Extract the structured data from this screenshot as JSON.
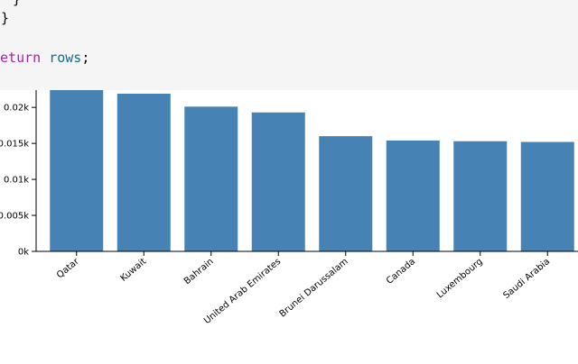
{
  "code": {
    "lines": [
      "}",
      "}"
    ],
    "keyword": "return",
    "identifier": "rows",
    "punct": ";"
  },
  "chart_data": {
    "type": "bar",
    "categories": [
      "Qatar",
      "Kuwait",
      "Bahrain",
      "United Arab Emirates",
      "Brunei Darussalam",
      "Canada",
      "Luxembourg",
      "Saudi Arabia"
    ],
    "values": [
      0.0224,
      0.0219,
      0.0201,
      0.0193,
      0.016,
      0.0154,
      0.0153,
      0.0152
    ],
    "color": "#4682b4",
    "ylim": [
      0,
      0.0224
    ],
    "yticks": [
      {
        "value": 0,
        "label": "0k"
      },
      {
        "value": 0.005,
        "label": "0.005k"
      },
      {
        "value": 0.01,
        "label": "0.01k"
      },
      {
        "value": 0.015,
        "label": "0.015k"
      },
      {
        "value": 0.02,
        "label": "0.02k"
      }
    ]
  }
}
